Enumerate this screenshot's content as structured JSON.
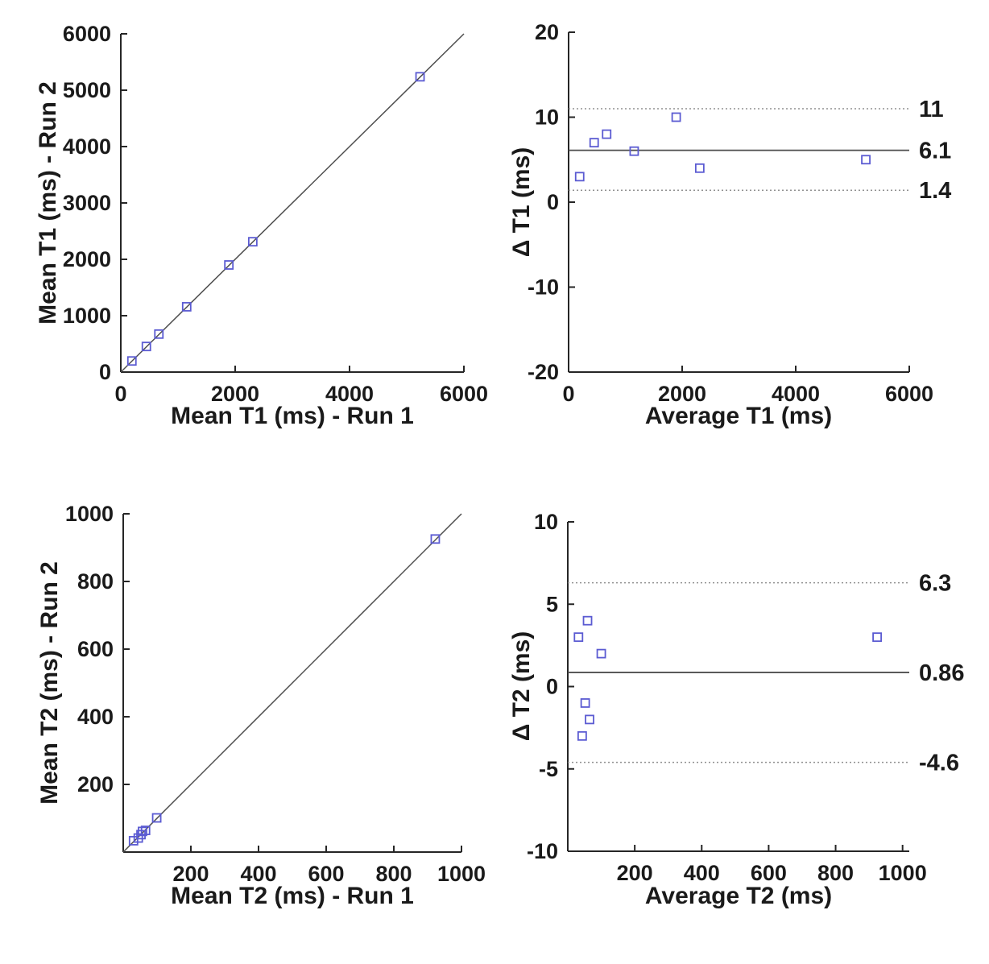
{
  "figure": {
    "background": "#ffffff",
    "description_labels": {
      "plot1_xlabel": "Mean T1 (ms) - Run 1",
      "plot1_ylabel": "Mean T1 (ms) - Run 2",
      "plot2_xlabel": "Average T1 (ms)",
      "plot2_ylabel": "Δ T1 (ms)",
      "plot3_xlabel": "Mean T2 (ms) - Run 1",
      "plot3_ylabel": "Mean T2 (ms) - Run 2",
      "plot4_xlabel": "Average T2 (ms)",
      "plot4_ylabel": "Δ T2 (ms)"
    }
  },
  "styles": {
    "marker_color": "#5b5bd2",
    "solid_line_color": "#4d4d4d",
    "dotted_line_color": "#909090",
    "axis_color": "#262626",
    "text_color": "#1a1a1a"
  },
  "chart_data": [
    {
      "id": "t1-correlation",
      "type": "scatter",
      "xlabel": "Mean T1 (ms) - Run 1",
      "ylabel": "Mean T1 (ms) - Run 2",
      "xlim": [
        0,
        6000
      ],
      "ylim": [
        0,
        6000
      ],
      "xticks": [
        0,
        2000,
        4000,
        6000
      ],
      "yticks": [
        0,
        1000,
        2000,
        3000,
        4000,
        5000,
        6000
      ],
      "identity_line": true,
      "marker": "square",
      "points": [
        [
          194,
          197
        ],
        [
          447,
          454
        ],
        [
          666,
          674
        ],
        [
          1152,
          1158
        ],
        [
          1890,
          1900
        ],
        [
          2308,
          2312
        ],
        [
          5233,
          5238
        ]
      ]
    },
    {
      "id": "t1-bland-altman",
      "type": "scatter",
      "xlabel": "Average T1 (ms)",
      "ylabel": "Δ T1 (ms)",
      "xlim": [
        0,
        6000
      ],
      "ylim": [
        -20,
        20
      ],
      "xticks": [
        0,
        2000,
        4000,
        6000
      ],
      "yticks": [
        -20,
        -10,
        0,
        10,
        20
      ],
      "mean_line": {
        "value": 6.1,
        "label": "6.1"
      },
      "upper_loa": {
        "value": 11,
        "label": "11"
      },
      "lower_loa": {
        "value": 1.4,
        "label": "1.4"
      },
      "marker": "square",
      "points": [
        [
          195,
          3
        ],
        [
          450,
          7
        ],
        [
          670,
          8
        ],
        [
          1155,
          6
        ],
        [
          1895,
          10
        ],
        [
          2310,
          4
        ],
        [
          5235,
          5
        ]
      ]
    },
    {
      "id": "t2-correlation",
      "type": "scatter",
      "xlabel": "Mean T2 (ms) - Run 1",
      "ylabel": "Mean T2 (ms) - Run 2",
      "xlim": [
        0,
        1000
      ],
      "ylim": [
        0,
        1000
      ],
      "xticks": [
        200,
        400,
        600,
        800,
        1000
      ],
      "yticks": [
        200,
        400,
        600,
        800,
        1000
      ],
      "identity_line": true,
      "marker": "square",
      "points": [
        [
          30.5,
          33.5
        ],
        [
          44.5,
          41.5
        ],
        [
          52.5,
          51.5
        ],
        [
          57,
          61
        ],
        [
          66,
          64
        ],
        [
          99,
          101
        ],
        [
          922.5,
          925.5
        ]
      ]
    },
    {
      "id": "t2-bland-altman",
      "type": "scatter",
      "xlabel": "Average T2 (ms)",
      "ylabel": "Δ T2 (ms)",
      "xlim": [
        0,
        1020
      ],
      "ylim": [
        -10,
        10
      ],
      "xticks": [
        200,
        400,
        600,
        800,
        1000
      ],
      "yticks": [
        -10,
        -5,
        0,
        5,
        10
      ],
      "mean_line": {
        "value": 0.86,
        "label": "0.86"
      },
      "upper_loa": {
        "value": 6.3,
        "label": "6.3"
      },
      "lower_loa": {
        "value": -4.6,
        "label": "-4.6"
      },
      "marker": "square",
      "points": [
        [
          32,
          3
        ],
        [
          43,
          -3
        ],
        [
          52,
          -1
        ],
        [
          59,
          4
        ],
        [
          65,
          -2
        ],
        [
          100,
          2
        ],
        [
          924,
          3
        ]
      ]
    }
  ]
}
